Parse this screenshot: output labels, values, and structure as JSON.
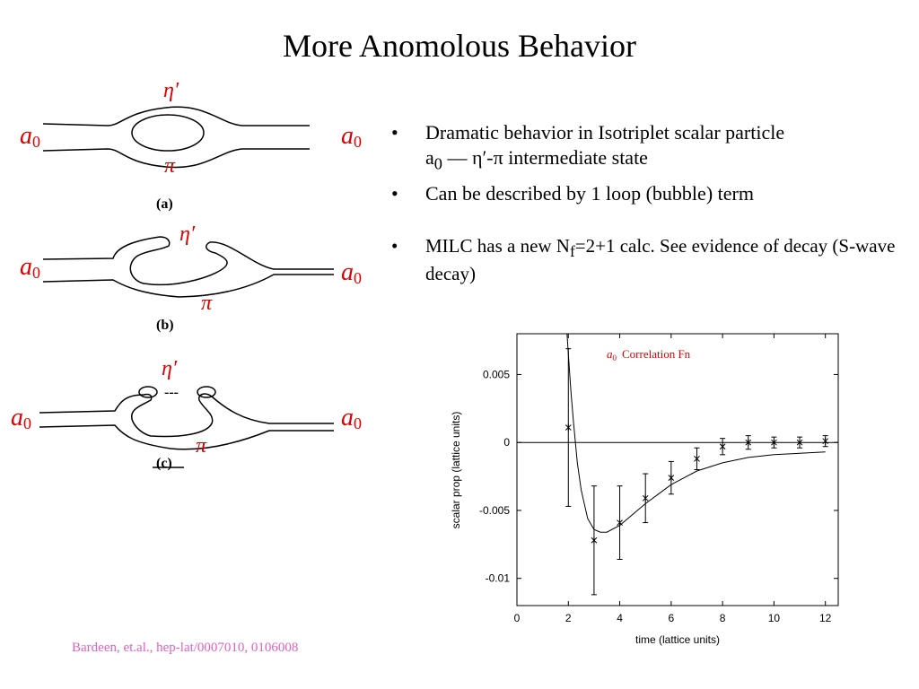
{
  "slide": {
    "title": "More Anomolous Behavior"
  },
  "diagrams": {
    "panels": [
      {
        "caption": "(a)",
        "left_label": "a",
        "left_sub": "0",
        "right_label": "a",
        "right_sub": "0",
        "top_label": "η′",
        "bottom_label": "π"
      },
      {
        "caption": "(b)",
        "left_label": "a",
        "left_sub": "0",
        "right_label": "a",
        "right_sub": "0",
        "top_label": "η′",
        "bottom_label": "π"
      },
      {
        "caption": "(c)",
        "left_label": "a",
        "left_sub": "0",
        "right_label": "a",
        "right_sub": "0",
        "top_label": "η′",
        "bottom_label": "π",
        "dots": "---"
      }
    ],
    "label_color": "#e00000"
  },
  "bullets": {
    "symbol": "•",
    "b1_line1": "Dramatic behavior in Isotriplet scalar particle",
    "b1_a": "a",
    "b1_a_sub": "0",
    "b1_rest": " —  η′-π intermediate state",
    "b2": "Can be described by 1 loop (bubble) term",
    "b3_pre": "MILC has a new N",
    "b3_sub": "f",
    "b3_post": "=2+1 calc. See evidence of decay (S-wave decay)"
  },
  "citation": {
    "text": "Bardeen, et.al., hep-lat/0007010, 0106008",
    "color": "#e060c0"
  },
  "chart_data": {
    "type": "scatter",
    "title": "",
    "annotation_symbol": "a",
    "annotation_sub": "0",
    "annotation_text": "Correlation Fn",
    "annotation_color": "#e00000",
    "xlabel": "time (lattice units)",
    "ylabel": "scalar prop (lattice units)",
    "xlim": [
      0,
      12.5
    ],
    "ylim": [
      -0.012,
      0.008
    ],
    "xticks": [
      0,
      2,
      4,
      6,
      8,
      10,
      12
    ],
    "xtick_labels": [
      "0",
      "2",
      "4",
      "6",
      "8",
      "10",
      "12"
    ],
    "yticks": [
      0.005,
      0,
      -0.005,
      -0.01
    ],
    "ytick_labels": [
      "0.005",
      "0",
      "-0.005",
      "-0.01"
    ],
    "zero_line": true,
    "series": [
      {
        "x": [
          2,
          3,
          4,
          5,
          6,
          7,
          8,
          9,
          10,
          11,
          12
        ],
        "y": [
          0.0011,
          -0.0072,
          -0.0059,
          -0.0041,
          -0.0026,
          -0.0012,
          -0.0003,
          0.0,
          0.0,
          0.0,
          0.0001
        ],
        "err": [
          0.0058,
          0.004,
          0.0027,
          0.0018,
          0.0012,
          0.0008,
          0.0006,
          0.0005,
          0.0004,
          0.0004,
          0.0004
        ]
      }
    ],
    "fit_curve": {
      "x": [
        1.95,
        2.0,
        2.1,
        2.2,
        2.35,
        2.5,
        2.75,
        3.0,
        3.25,
        3.5,
        4.0,
        4.5,
        5.0,
        5.5,
        6.0,
        7.0,
        8.0,
        9.0,
        10.0,
        11.0,
        12.0
      ],
      "y": [
        0.008,
        0.0065,
        0.0038,
        0.0015,
        -0.0015,
        -0.0035,
        -0.0056,
        -0.0064,
        -0.0066,
        -0.0066,
        -0.0061,
        -0.0053,
        -0.0045,
        -0.0038,
        -0.0031,
        -0.0021,
        -0.0015,
        -0.0011,
        -0.0009,
        -0.0008,
        -0.0007
      ]
    }
  }
}
